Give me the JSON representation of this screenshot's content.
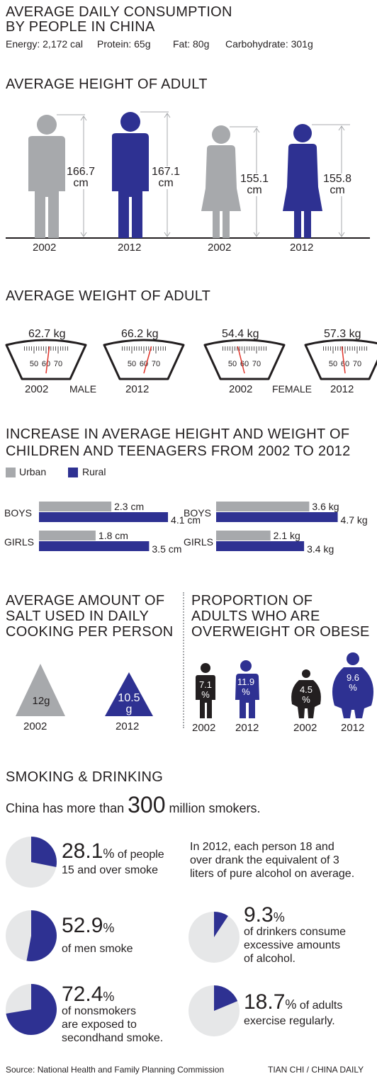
{
  "colors": {
    "gray": "#a7a9ac",
    "blue": "#2e3192",
    "black": "#231f20",
    "pieLight": "#e6e7e8"
  },
  "header": {
    "title_line1": "AVERAGE DAILY CONSUMPTION",
    "title_line2": "BY PEOPLE IN CHINA",
    "energy": "Energy: 2,172 cal",
    "protein": "Protein: 65g",
    "fat": "Fat: 80g",
    "carb": "Carbohydrate: 301g"
  },
  "height_section": {
    "title": "AVERAGE HEIGHT OF ADULT",
    "figures": [
      {
        "year": "2002",
        "value": "166.7",
        "unit": "cm",
        "gender": "male",
        "color": "gray"
      },
      {
        "year": "2012",
        "value": "167.1",
        "unit": "cm",
        "gender": "male",
        "color": "blue"
      },
      {
        "year": "2002",
        "value": "155.1",
        "unit": "cm",
        "gender": "female",
        "color": "gray"
      },
      {
        "year": "2012",
        "value": "155.8",
        "unit": "cm",
        "gender": "female",
        "color": "blue"
      }
    ]
  },
  "weight_section": {
    "title": "AVERAGE WEIGHT OF ADULT",
    "male_label": "MALE",
    "female_label": "FEMALE",
    "scale_ticks": [
      "50",
      "60",
      "70"
    ],
    "scales": [
      {
        "value": "62.7 kg",
        "year": "2002",
        "reading": 62.7
      },
      {
        "value": "66.2 kg",
        "year": "2012",
        "reading": 66.2
      },
      {
        "value": "54.4 kg",
        "year": "2002",
        "reading": 54.4
      },
      {
        "value": "57.3 kg",
        "year": "2012",
        "reading": 57.3
      }
    ]
  },
  "children_section": {
    "title_line1": "INCREASE IN AVERAGE HEIGHT AND WEIGHT OF",
    "title_line2": "CHILDREN AND TEENAGERS FROM 2002 TO 2012",
    "legend_urban": "Urban",
    "legend_rural": "Rural"
  },
  "salt_section": {
    "title_line1": "AVERAGE AMOUNT OF",
    "title_line2": "SALT USED IN DAILY",
    "title_line3": "COOKING PER PERSON",
    "items": [
      {
        "value": "12g",
        "year": "2002",
        "amount": 12
      },
      {
        "value_line1": "10.5",
        "value_line2": "g",
        "year": "2012",
        "amount": 10.5
      }
    ]
  },
  "overweight_section": {
    "title_line1": "PROPORTION OF",
    "title_line2": "ADULTS WHO ARE",
    "title_line3": "OVERWEIGHT OR OBESE",
    "items": [
      {
        "value": "7.1",
        "unit": "%",
        "year": "2002"
      },
      {
        "value": "11.9",
        "unit": "%",
        "year": "2012"
      },
      {
        "value": "4.5",
        "unit": "%",
        "year": "2002"
      },
      {
        "value": "9.6",
        "unit": "%",
        "year": "2012"
      }
    ]
  },
  "smoking_section": {
    "title": "SMOKING & DRINKING",
    "smokers_pre": "China has more than",
    "smokers_num": "300",
    "smokers_post": "million smokers.",
    "alcohol_line1": "In 2012, each person 18 and",
    "alcohol_line2": "over drank the equivalent of 3",
    "alcohol_line3": "liters of pure alcohol on average.",
    "stats": [
      {
        "num": "28.1",
        "pct": "%",
        "text1": "of people",
        "text2": "15 and over smoke"
      },
      {
        "num": "52.9",
        "pct": "%",
        "text1": "of men smoke",
        "text2": ""
      },
      {
        "num": "72.4",
        "pct": "%",
        "text1": "of nonsmokers",
        "text2": "are exposed to",
        "text3": "secondhand smoke."
      },
      {
        "num": "9.3",
        "pct": "%",
        "text1": "of drinkers consume",
        "text2": "excessive amounts",
        "text3": "of alcohol."
      },
      {
        "num": "18.7",
        "pct": "%",
        "text1": "of adults",
        "text2": "exercise regularly."
      }
    ]
  },
  "footer": {
    "source": "Source: National Health and Family Planning Commission",
    "credit": "TIAN CHI / CHINA DAILY"
  },
  "chart_data": [
    {
      "type": "bar",
      "title": "AVERAGE HEIGHT OF ADULT",
      "categories": [
        "2002",
        "2012",
        "2002",
        "2012"
      ],
      "series": [
        {
          "name": "",
          "values": [
            166.7,
            167.1,
            155.1,
            155.8
          ]
        }
      ],
      "unit": "cm"
    },
    {
      "type": "bar",
      "title": "AVERAGE WEIGHT OF ADULT",
      "categories": [
        "2002",
        "2012",
        "2002",
        "2012"
      ],
      "series": [
        {
          "name": "",
          "values": [
            62.7,
            66.2,
            54.4,
            57.3
          ]
        }
      ],
      "unit": "kg"
    },
    {
      "type": "bar",
      "title": "BOYS",
      "categories": [
        "BOYS",
        "GIRLS"
      ],
      "unit": "cm",
      "xmax": 4.8,
      "series": [
        {
          "name": "Urban",
          "values": [
            2.3,
            1.8
          ],
          "labels": [
            "2.3 cm",
            "1.8 cm"
          ]
        },
        {
          "name": "Rural",
          "values": [
            4.1,
            3.5
          ],
          "labels": [
            "4.1 cm",
            "3.5 cm"
          ]
        }
      ]
    },
    {
      "type": "bar",
      "title": "BOYS",
      "categories": [
        "BOYS",
        "GIRLS"
      ],
      "unit": "kg",
      "xmax": 5.5,
      "series": [
        {
          "name": "Urban",
          "values": [
            3.6,
            2.1
          ],
          "labels": [
            "3.6 kg",
            "2.1 kg"
          ]
        },
        {
          "name": "Rural",
          "values": [
            4.7,
            3.4
          ],
          "labels": [
            "4.7 kg",
            "3.4 kg"
          ]
        }
      ]
    },
    {
      "type": "pie",
      "values": [
        28.1,
        52.9,
        72.4,
        9.3,
        18.7
      ],
      "unit": "%"
    }
  ]
}
